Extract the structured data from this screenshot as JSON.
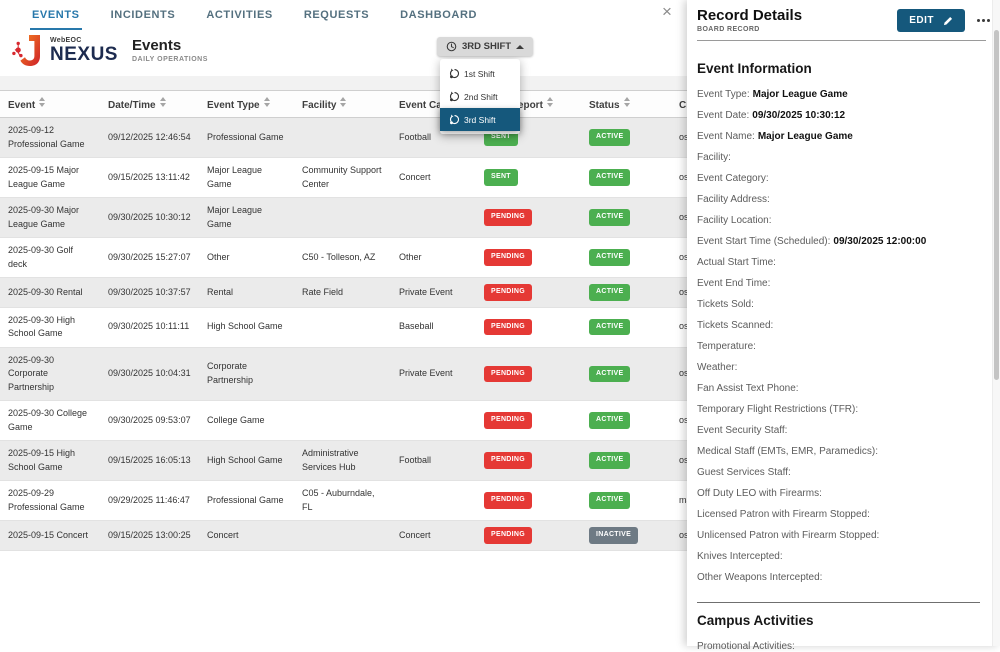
{
  "nav": {
    "tabs": [
      {
        "label": "EVENTS",
        "active": true
      },
      {
        "label": "INCIDENTS",
        "active": false
      },
      {
        "label": "ACTIVITIES",
        "active": false
      },
      {
        "label": "REQUESTS",
        "active": false
      },
      {
        "label": "DASHBOARD",
        "active": false
      }
    ]
  },
  "brand": {
    "webeoc": "WebEOC",
    "nexus": "NEXUS",
    "page_title": "Events",
    "page_subtitle": "DAILY OPERATIONS"
  },
  "shift": {
    "button_label": "3RD SHIFT",
    "clock_icon": "clock",
    "menu": [
      {
        "label": "1st Shift",
        "selected": false
      },
      {
        "label": "2nd Shift",
        "selected": false
      },
      {
        "label": "3rd Shift",
        "selected": true
      }
    ]
  },
  "table": {
    "columns": [
      {
        "label": "Event"
      },
      {
        "label": "Date/Time"
      },
      {
        "label": "Event Type"
      },
      {
        "label": "Facility"
      },
      {
        "label": "Event Category"
      },
      {
        "label": "Daily Report"
      },
      {
        "label": "Status"
      },
      {
        "label": "Created By"
      }
    ],
    "rows": [
      {
        "event": "2025-09-12 Professional Game",
        "datetime": "09/12/2025 12:46:54",
        "type": "Professional Game",
        "facility": "",
        "category": "Football",
        "report": "SENT",
        "status": "ACTIVE",
        "created": "osc"
      },
      {
        "event": "2025-09-15 Major League Game",
        "datetime": "09/15/2025 13:11:42",
        "type": "Major League Game",
        "facility": "Community Support Center",
        "category": "Concert",
        "report": "SENT",
        "status": "ACTIVE",
        "created": "osc"
      },
      {
        "event": "2025-09-30 Major League Game",
        "datetime": "09/30/2025 10:30:12",
        "type": "Major League Game",
        "facility": "",
        "category": "",
        "report": "PENDING",
        "status": "ACTIVE",
        "created": "osc"
      },
      {
        "event": "2025-09-30 Golf deck",
        "datetime": "09/30/2025 15:27:07",
        "type": "Other",
        "facility": "C50 - Tolleson, AZ",
        "category": "Other",
        "report": "PENDING",
        "status": "ACTIVE",
        "created": "osc"
      },
      {
        "event": "2025-09-30 Rental",
        "datetime": "09/30/2025 10:37:57",
        "type": "Rental",
        "facility": "Rate Field",
        "category": "Private Event",
        "report": "PENDING",
        "status": "ACTIVE",
        "created": "osc"
      },
      {
        "event": "2025-09-30 High School Game",
        "datetime": "09/30/2025 10:11:11",
        "type": "High School Game",
        "facility": "",
        "category": "Baseball",
        "report": "PENDING",
        "status": "ACTIVE",
        "created": "osc"
      },
      {
        "event": "2025-09-30 Corporate Partnership",
        "datetime": "09/30/2025 10:04:31",
        "type": "Corporate Partnership",
        "facility": "",
        "category": "Private Event",
        "report": "PENDING",
        "status": "ACTIVE",
        "created": "osc"
      },
      {
        "event": "2025-09-30 College Game",
        "datetime": "09/30/2025 09:53:07",
        "type": "College Game",
        "facility": "",
        "category": "",
        "report": "PENDING",
        "status": "ACTIVE",
        "created": "osc"
      },
      {
        "event": "2025-09-15 High School Game",
        "datetime": "09/15/2025 16:05:13",
        "type": "High School Game",
        "facility": "Administrative Services Hub",
        "category": "Football",
        "report": "PENDING",
        "status": "ACTIVE",
        "created": "osc"
      },
      {
        "event": "2025-09-29 Professional Game",
        "datetime": "09/29/2025 11:46:47",
        "type": "Professional Game",
        "facility": "C05 - Auburndale, FL",
        "category": "",
        "report": "PENDING",
        "status": "ACTIVE",
        "created": "mat"
      },
      {
        "event": "2025-09-15 Concert",
        "datetime": "09/15/2025 13:00:25",
        "type": "Concert",
        "facility": "",
        "category": "Concert",
        "report": "PENDING",
        "status": "INACTIVE",
        "created": "osc"
      }
    ]
  },
  "panel": {
    "close_glyph": "×",
    "title": "Record Details",
    "subtitle": "BOARD RECORD",
    "edit_label": "EDIT",
    "sections": [
      {
        "heading": "Event Information",
        "fields": [
          {
            "label": "Event Type:",
            "value": "Major League Game"
          },
          {
            "label": "Event Date:",
            "value": "09/30/2025 10:30:12"
          },
          {
            "label": "Event Name:",
            "value": "Major League Game"
          },
          {
            "label": "Facility:",
            "value": ""
          },
          {
            "label": "Event Category:",
            "value": ""
          },
          {
            "label": "Facility Address:",
            "value": ""
          },
          {
            "label": "Facility Location:",
            "value": ""
          },
          {
            "label": "Event Start Time (Scheduled):",
            "value": "09/30/2025 12:00:00"
          },
          {
            "label": "Actual Start Time:",
            "value": ""
          },
          {
            "label": "Event End Time:",
            "value": ""
          },
          {
            "label": "Tickets Sold:",
            "value": ""
          },
          {
            "label": "Tickets Scanned:",
            "value": ""
          },
          {
            "label": "Temperature:",
            "value": ""
          },
          {
            "label": "Weather:",
            "value": ""
          },
          {
            "label": "Fan Assist Text Phone:",
            "value": ""
          },
          {
            "label": "Temporary Flight Restrictions (TFR):",
            "value": ""
          },
          {
            "label": "Event Security Staff:",
            "value": ""
          },
          {
            "label": "Medical Staff (EMTs, EMR, Paramedics):",
            "value": ""
          },
          {
            "label": "Guest Services Staff:",
            "value": ""
          },
          {
            "label": "Off Duty LEO with Firearms:",
            "value": ""
          },
          {
            "label": "Licensed Patron with Firearm Stopped:",
            "value": ""
          },
          {
            "label": "Unlicensed Patron with Firearm Stopped:",
            "value": ""
          },
          {
            "label": "Knives Intercepted:",
            "value": ""
          },
          {
            "label": "Other Weapons Intercepted:",
            "value": ""
          }
        ]
      },
      {
        "heading": "Campus Activities",
        "fields": [
          {
            "label": "Promotional Activities:",
            "value": ""
          }
        ]
      }
    ]
  },
  "colors": {
    "accent_blue": "#2878ab",
    "button_dark_blue": "#15587c",
    "badge_green": "#4caf50",
    "badge_red": "#e53935",
    "badge_gray": "#6e7a84",
    "nexus_navy": "#1d2b4f",
    "logo_red": "#d7282f",
    "logo_orange": "#f58220"
  }
}
